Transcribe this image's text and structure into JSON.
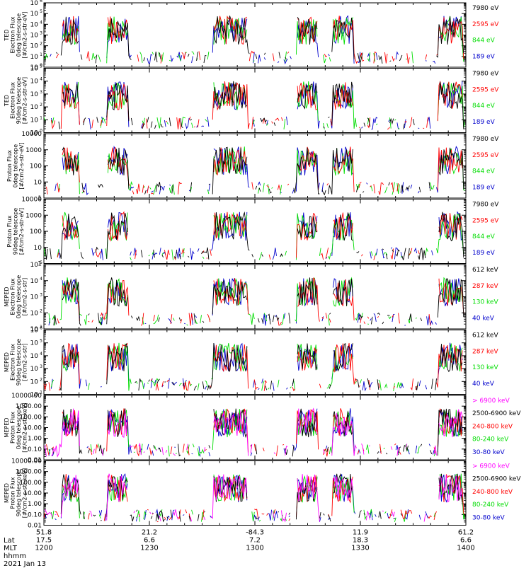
{
  "chart_data": [
    {
      "type": "line",
      "ylabel_lines": [
        "TED",
        "Electron Flux",
        "0deg telescope",
        "[#/cm2-s-str-eV]"
      ],
      "yscale": "log",
      "ylim": [
        1,
        1000000
      ],
      "ytick_labels": [
        "10^0",
        "10^1",
        "10^2",
        "10^3",
        "10^4",
        "10^5",
        "10^6"
      ],
      "series": [
        {
          "name": "7980 eV",
          "color": "#000000"
        },
        {
          "name": "2595 eV",
          "color": "#ff0000"
        },
        {
          "name": "844 eV",
          "color": "#00dd00"
        },
        {
          "name": "189 eV",
          "color": "#0000cc"
        }
      ]
    },
    {
      "type": "line",
      "ylabel_lines": [
        "TED",
        "Electron Flux",
        "90deg telescope",
        "[#/cm2-s-str-eV]"
      ],
      "yscale": "log",
      "ylim": [
        1,
        100000
      ],
      "ytick_labels": [
        "10^0",
        "10^1",
        "10^2",
        "10^3",
        "10^4",
        "10^5"
      ],
      "series": [
        {
          "name": "7980 eV",
          "color": "#000000"
        },
        {
          "name": "2595 eV",
          "color": "#ff0000"
        },
        {
          "name": "844 eV",
          "color": "#00dd00"
        },
        {
          "name": "189 eV",
          "color": "#0000cc"
        }
      ]
    },
    {
      "type": "line",
      "ylabel_lines": [
        "Proton Flux",
        "0deg telescope",
        "[#/cm2-s-str-eV]"
      ],
      "yscale": "log",
      "ylim": [
        1,
        10000
      ],
      "ytick_labels": [
        "1",
        "10",
        "100",
        "1000",
        "10000"
      ],
      "series": [
        {
          "name": "7980 eV",
          "color": "#000000"
        },
        {
          "name": "2595 eV",
          "color": "#ff0000"
        },
        {
          "name": "844 eV",
          "color": "#00dd00"
        },
        {
          "name": "189 eV",
          "color": "#0000cc"
        }
      ]
    },
    {
      "type": "line",
      "ylabel_lines": [
        "Proton Flux",
        "90deg telescope",
        "[#/cm2-s-str-eV]"
      ],
      "yscale": "log",
      "ylim": [
        1,
        10000
      ],
      "ytick_labels": [
        "1",
        "10",
        "100",
        "1000",
        "10000"
      ],
      "series": [
        {
          "name": "7980 eV",
          "color": "#000000"
        },
        {
          "name": "2595 eV",
          "color": "#ff0000"
        },
        {
          "name": "844 eV",
          "color": "#00dd00"
        },
        {
          "name": "189 eV",
          "color": "#0000cc"
        }
      ]
    },
    {
      "type": "line",
      "ylabel_lines": [
        "MEPED",
        "Electron Flux",
        "0deg telescope",
        "[#/cm2-s-str]"
      ],
      "yscale": "log",
      "ylim": [
        10,
        100000
      ],
      "ytick_labels": [
        "10^1",
        "10^2",
        "10^3",
        "10^4",
        "10^5"
      ],
      "series": [
        {
          "name": "612 keV",
          "color": "#000000"
        },
        {
          "name": "287 keV",
          "color": "#ff0000"
        },
        {
          "name": "130 keV",
          "color": "#00dd00"
        },
        {
          "name": "40 keV",
          "color": "#0000cc"
        }
      ]
    },
    {
      "type": "line",
      "ylabel_lines": [
        "MEPED",
        "Electron Flux",
        "90deg telescope",
        "[#/cm2-s-str]"
      ],
      "yscale": "log",
      "ylim": [
        10,
        1000000
      ],
      "ytick_labels": [
        "10^1",
        "10^2",
        "10^3",
        "10^4",
        "10^5",
        "10^6"
      ],
      "series": [
        {
          "name": "612 keV",
          "color": "#000000"
        },
        {
          "name": "287 keV",
          "color": "#ff0000"
        },
        {
          "name": "130 keV",
          "color": "#00dd00"
        },
        {
          "name": "40 keV",
          "color": "#0000cc"
        }
      ]
    },
    {
      "type": "line",
      "ylabel_lines": [
        "MEPED",
        "Proton Flux",
        "0deg telescope",
        "[#/cm2-s-str-keV]"
      ],
      "yscale": "log",
      "ylim": [
        0.01,
        10000
      ],
      "ytick_labels": [
        "0.01",
        "0.10",
        "1.00",
        "10.00",
        "100.00",
        "1000.00",
        "10000.00"
      ],
      "series": [
        {
          "name": "> 6900 keV",
          "color": "#ff00ff"
        },
        {
          "name": "2500-6900 keV",
          "color": "#000000"
        },
        {
          "name": "240-800 keV",
          "color": "#ff0000"
        },
        {
          "name": "80-240 keV",
          "color": "#00dd00"
        },
        {
          "name": "30-80 keV",
          "color": "#0000cc"
        }
      ]
    },
    {
      "type": "line",
      "ylabel_lines": [
        "MEPED",
        "Proton Flux",
        "90deg telescope",
        "[#/cm2-s-str-keV]"
      ],
      "yscale": "log",
      "ylim": [
        0.01,
        10000
      ],
      "ytick_labels": [
        "0.01",
        "0.10",
        "1.00",
        "10.00",
        "100.00",
        "1000.00",
        "10000.00"
      ],
      "series": [
        {
          "name": "> 6900 keV",
          "color": "#ff00ff"
        },
        {
          "name": "2500-6900 keV",
          "color": "#000000"
        },
        {
          "name": "240-800 keV",
          "color": "#ff0000"
        },
        {
          "name": "80-240 keV",
          "color": "#00dd00"
        },
        {
          "name": "30-80 keV",
          "color": "#0000cc"
        }
      ]
    }
  ],
  "xaxis": {
    "ticks": [
      {
        "time": "12:00",
        "lat": "51.8",
        "mlt": "17.5",
        "hhmm": "1200"
      },
      {
        "time": "12:30",
        "lat": "21.2",
        "mlt": "6.6",
        "hhmm": "1230"
      },
      {
        "time": "13:00",
        "lat": "-84.3",
        "mlt": "7.2",
        "hhmm": "1300"
      },
      {
        "time": "13:30",
        "lat": "11.9",
        "mlt": "18.3",
        "hhmm": "1330"
      },
      {
        "time": "14:00",
        "lat": "61.2",
        "mlt": "6.6",
        "hhmm": "1400"
      }
    ],
    "row_labels": [
      "Lat",
      "MLT",
      "hhmm"
    ],
    "date": "2021 Jan 13"
  },
  "footer": {
    "lat_label": "Lat",
    "mlt_label": "MLT",
    "hhmm_label": "hhmm",
    "date": "2021 Jan 13"
  }
}
